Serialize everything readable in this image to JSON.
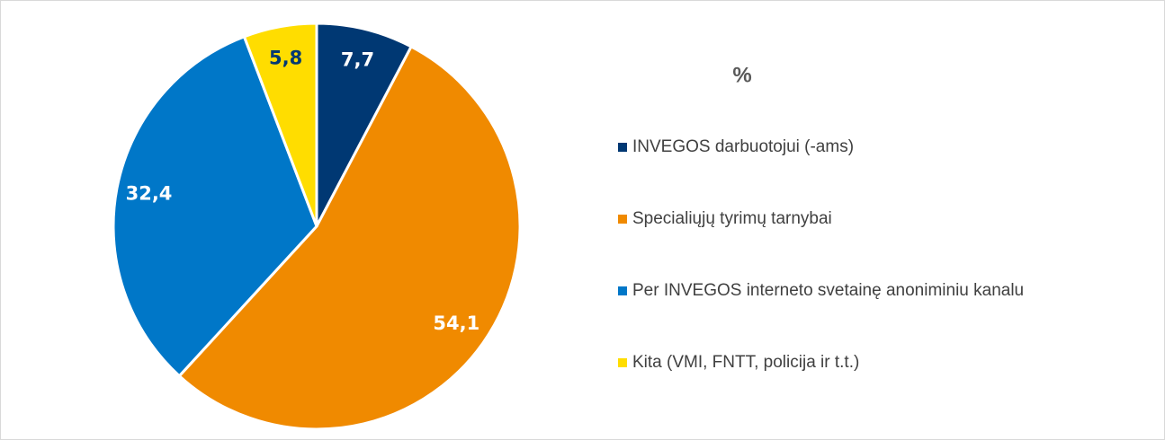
{
  "chart_data": {
    "type": "pie",
    "title": "%",
    "categories": [
      "INVEGOS darbuotojui (-ams)",
      "Specialiųjų tyrimų tarnybai",
      "Per INVEGOS interneto svetainę anoniminiu kanalu",
      "Kita (VMI, FNTT, policija ir t.t.)"
    ],
    "values": [
      7.7,
      54.1,
      32.4,
      5.8
    ],
    "value_labels": [
      "7,7",
      "54,1",
      "32,4",
      "5,8"
    ],
    "colors": [
      "#003873",
      "#f08a00",
      "#0077c8",
      "#ffdd00"
    ],
    "label_colors": [
      "#ffffff",
      "#ffffff",
      "#ffffff",
      "#003873"
    ],
    "legend": "right"
  }
}
